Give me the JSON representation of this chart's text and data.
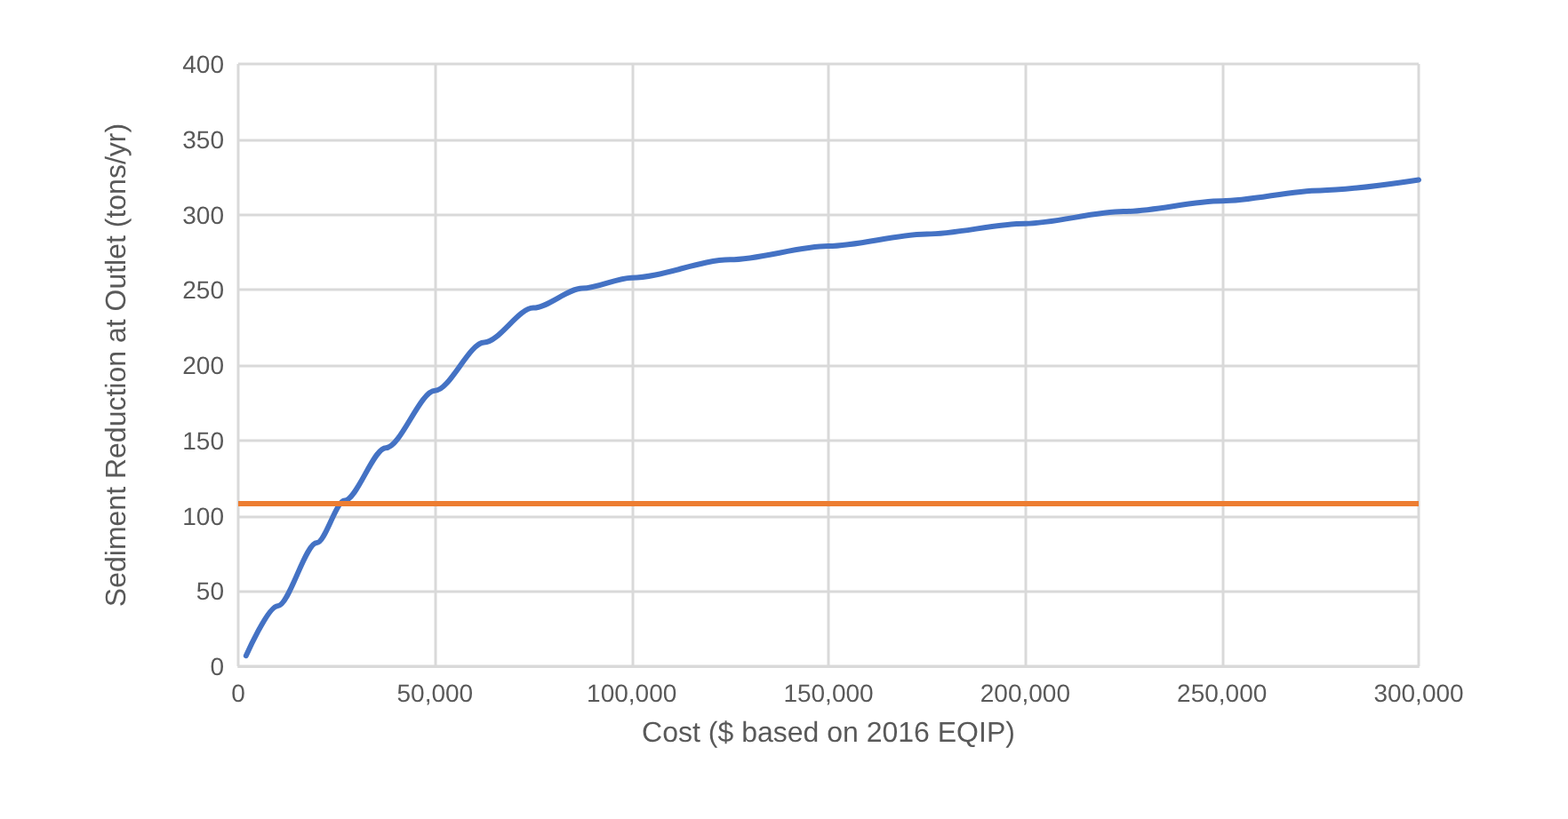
{
  "chart_data": {
    "type": "line",
    "xlabel": "Cost ($ based on 2016 EQIP)",
    "ylabel": "Sediment Reduction at Outlet (tons/yr)",
    "series": [
      {
        "color": "#4472c4",
        "x": [
          2000,
          10000,
          20000,
          27000,
          37500,
          50000,
          62500,
          75000,
          87500,
          100000,
          125000,
          150000,
          175000,
          200000,
          225000,
          250000,
          275000,
          300000
        ],
        "values": [
          7,
          40,
          82,
          110,
          145,
          183,
          215,
          238,
          251,
          258,
          270,
          279,
          287,
          294,
          302,
          309,
          316,
          323
        ]
      }
    ],
    "ref_lines": [
      {
        "axis": "y",
        "value": 108,
        "color": "#ed7d31"
      }
    ],
    "xlim": [
      0,
      300000
    ],
    "xticks": [
      0,
      {
        "value": 50000,
        "label": "50,000"
      },
      {
        "value": 100000,
        "label": "100,000"
      },
      {
        "value": 150000,
        "label": "150,000"
      },
      {
        "value": 200000,
        "label": "200,000"
      },
      {
        "value": 250000,
        "label": "250,000"
      },
      {
        "value": 300000,
        "label": "300,000"
      }
    ],
    "ylim": [
      0,
      400
    ],
    "yticks": [
      0,
      50,
      100,
      150,
      200,
      250,
      300,
      350,
      400
    ],
    "grid": true,
    "marker": "none",
    "line_style": "solid"
  }
}
